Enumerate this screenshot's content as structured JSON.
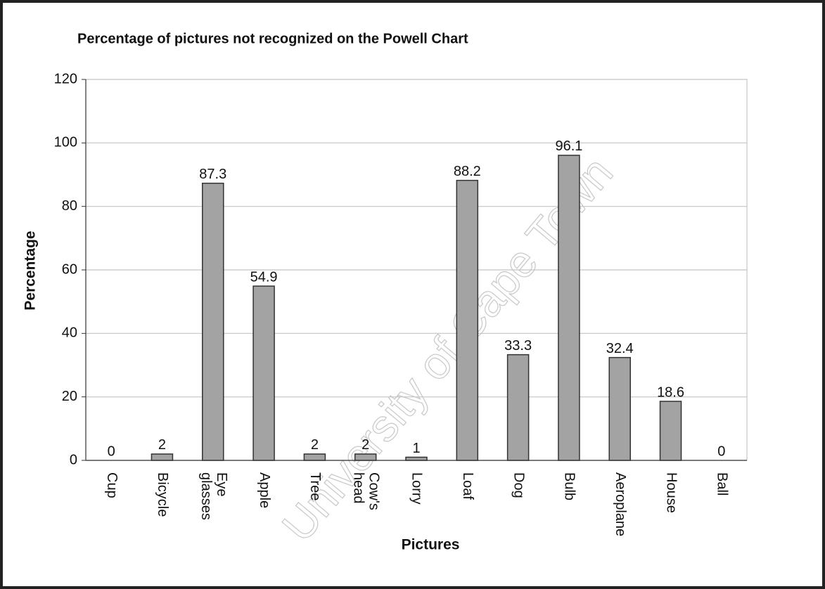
{
  "chart_data": {
    "type": "bar",
    "title": "Percentage of pictures not recognized on the Powell Chart",
    "x_label": "Pictures",
    "y_label": "Percentage",
    "watermark": "University of Cape Town",
    "categories": [
      "Cup",
      "Bicycle",
      "Eye glasses",
      "Apple",
      "Tree",
      "Cow's head",
      "Lorry",
      "Loaf",
      "Dog",
      "Bulb",
      "Aeroplane",
      "House",
      "Ball"
    ],
    "values": [
      0,
      2,
      87.3,
      54.9,
      2,
      2,
      1,
      88.2,
      33.3,
      96.1,
      32.4,
      18.6,
      0
    ],
    "color": "#a3a3a3",
    "ylim": [
      0,
      120
    ],
    "yticks": [
      0,
      20,
      40,
      60,
      80,
      100,
      120
    ],
    "grid": true
  }
}
